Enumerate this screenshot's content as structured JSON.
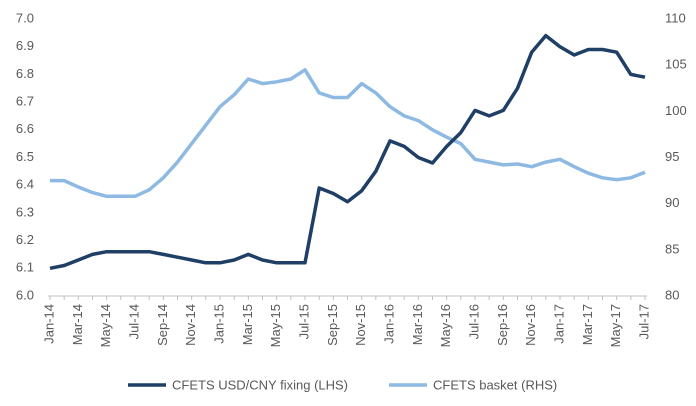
{
  "chart_data": {
    "type": "line",
    "categories": [
      "Jan-14",
      null,
      "Mar-14",
      null,
      "May-14",
      null,
      "Jul-14",
      null,
      "Sep-14",
      null,
      "Nov-14",
      null,
      "Jan-15",
      null,
      "Mar-15",
      null,
      "May-15",
      null,
      "Jul-15",
      null,
      "Sep-15",
      null,
      "Nov-15",
      null,
      "Jan-16",
      null,
      "Mar-16",
      null,
      "May-16",
      null,
      "Jul-16",
      null,
      "Sep-16",
      null,
      "Nov-16",
      null,
      "Jan-17",
      null,
      "Mar-17",
      null,
      "May-17",
      null,
      "Jul-17"
    ],
    "series": [
      {
        "name": "CFETS USD/CNY fixing (LHS)",
        "color": "#1f3f66",
        "axis": "y",
        "values": [
          6.1,
          6.11,
          6.13,
          6.15,
          6.16,
          6.16,
          6.16,
          6.16,
          6.15,
          6.14,
          6.13,
          6.12,
          6.12,
          6.13,
          6.15,
          6.13,
          6.12,
          6.12,
          6.12,
          6.39,
          6.37,
          6.34,
          6.38,
          6.45,
          6.56,
          6.54,
          6.5,
          6.48,
          6.54,
          6.59,
          6.67,
          6.65,
          6.67,
          6.75,
          6.88,
          6.94,
          6.9,
          6.87,
          6.89,
          6.89,
          6.88,
          6.8,
          6.79
        ]
      },
      {
        "name": "CFETS basket (RHS)",
        "color": "#8db9e2",
        "axis": "y2",
        "values": [
          92.5,
          92.5,
          91.8,
          91.2,
          90.8,
          90.8,
          90.8,
          91.5,
          92.8,
          94.5,
          96.5,
          98.5,
          100.5,
          101.8,
          103.5,
          103,
          103.2,
          103.5,
          104.5,
          102,
          101.5,
          101.5,
          103,
          102,
          100.5,
          99.5,
          99,
          98,
          97.2,
          96.5,
          94.8,
          94.5,
          94.2,
          94.3,
          94,
          94.5,
          94.8,
          94,
          93.3,
          92.8,
          92.6,
          92.8,
          93.4
        ]
      }
    ],
    "ylim": [
      6.0,
      7.0
    ],
    "yticks": [
      {
        "value": 6,
        "label": "6.0"
      },
      6.1,
      6.2,
      6.3,
      6.4,
      6.5,
      6.6,
      6.7,
      6.8,
      6.9,
      {
        "value": 7,
        "label": "7.0"
      }
    ],
    "y2lim": [
      80,
      110
    ],
    "y2ticks": [
      80,
      85,
      90,
      95,
      100,
      105,
      110
    ],
    "grid": false,
    "legend": "bottom"
  }
}
